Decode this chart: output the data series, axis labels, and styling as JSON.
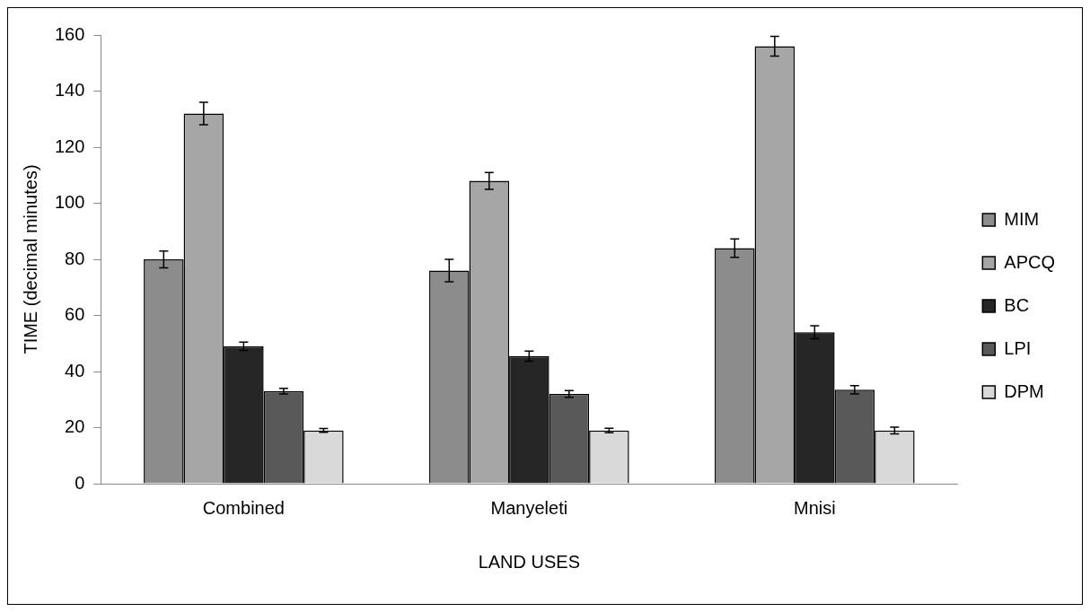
{
  "chart_data": {
    "type": "bar",
    "xlabel": "LAND USES",
    "ylabel": "TIME (decimal minutes)",
    "categories": [
      "Combined",
      "Manyeleti",
      "Mnisi"
    ],
    "series": [
      {
        "name": "MIM",
        "color": "#8c8c8c",
        "values": [
          80,
          76,
          84
        ],
        "errors": [
          3,
          4,
          3.3
        ]
      },
      {
        "name": "APCQ",
        "color": "#a6a6a6",
        "values": [
          132,
          108,
          156
        ],
        "errors": [
          4,
          3,
          3.5
        ]
      },
      {
        "name": "BC",
        "color": "#262626",
        "values": [
          49,
          45.5,
          54
        ],
        "errors": [
          1.5,
          1.8,
          2.3
        ]
      },
      {
        "name": "LPI",
        "color": "#595959",
        "values": [
          33,
          32,
          33.5
        ],
        "errors": [
          1,
          1.2,
          1.5
        ]
      },
      {
        "name": "DPM",
        "color": "#d9d9d9",
        "values": [
          19,
          19,
          19
        ],
        "errors": [
          0.7,
          0.8,
          1.2
        ]
      }
    ],
    "ylim": [
      0,
      160
    ],
    "yticks": [
      0,
      20,
      40,
      60,
      80,
      100,
      120,
      140,
      160
    ],
    "grid": false,
    "legend": "right"
  }
}
